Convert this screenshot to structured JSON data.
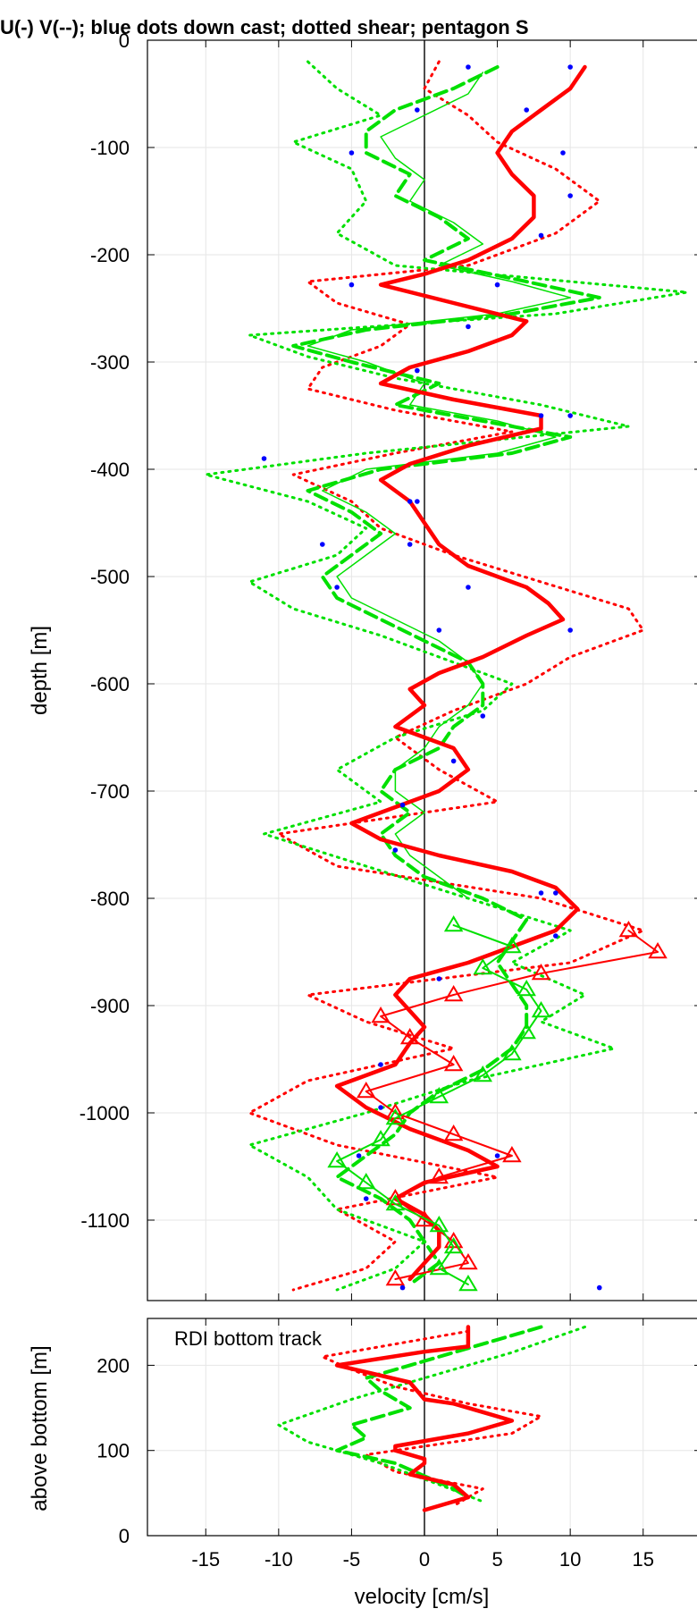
{
  "chart_data": [
    {
      "type": "line",
      "title": "U(-) V(--); blue dots down cast; dotted shear; pentagon S",
      "xlabel": "",
      "ylabel": "depth [m]",
      "xlim": [
        -19,
        19
      ],
      "ylim": [
        -1175,
        0
      ],
      "y_tick_labels": [
        "0",
        "-100",
        "-200",
        "-300",
        "-400",
        "-500",
        "-600",
        "-700",
        "-800",
        "-900",
        "-1000",
        "-1100"
      ],
      "x_ticks": [
        -15,
        -10,
        -5,
        0,
        5,
        10,
        15
      ],
      "grid": true,
      "colors": {
        "u": "#ff0000",
        "v": "#00e000",
        "downcast": "#0000ff",
        "zero": "#000000"
      },
      "series": [
        {
          "key": "u",
          "style": "solid-thick",
          "color": "#ff0000",
          "depth": [
            -25,
            -45,
            -65,
            -85,
            -105,
            -125,
            -145,
            -165,
            -185,
            -205,
            -218,
            -228,
            -245,
            -262,
            -275,
            -290,
            -305,
            -320,
            -335,
            -350,
            -362,
            -378,
            -395,
            -410,
            -430,
            -450,
            -470,
            -490,
            -510,
            -525,
            -540,
            -555,
            -575,
            -590,
            -605,
            -620,
            -640,
            -660,
            -680,
            -700,
            -715,
            -730,
            -745,
            -760,
            -775,
            -790,
            -810,
            -830,
            -845,
            -860,
            -875,
            -890,
            -905,
            -920,
            -935,
            -955,
            -975,
            -995,
            -1015,
            -1035,
            -1050,
            -1065,
            -1080,
            -1095,
            -1110,
            -1125,
            -1140,
            -1155
          ],
          "u": [
            11,
            10,
            8,
            6,
            5,
            6,
            7.5,
            7.5,
            6,
            3,
            0,
            -3,
            2,
            7,
            6,
            3,
            -1,
            -3,
            2,
            8,
            8,
            3,
            -1,
            -3,
            -1,
            0,
            1,
            3,
            7,
            8.5,
            9.5,
            7,
            4,
            1,
            -1,
            0,
            -2,
            2,
            3,
            1,
            -2,
            -5,
            -3,
            1,
            6,
            9,
            10.5,
            9,
            6,
            3,
            -1,
            -2,
            -1,
            0,
            -1,
            -2,
            -6,
            -4,
            -1,
            3,
            5,
            0,
            -2,
            0,
            1,
            1,
            0,
            -1
          ]
        },
        {
          "key": "v",
          "style": "dashed-thick",
          "color": "#00e000",
          "depth": [
            -25,
            -45,
            -65,
            -85,
            -105,
            -125,
            -145,
            -165,
            -185,
            -205,
            -225,
            -240,
            -255,
            -270,
            -285,
            -300,
            -320,
            -340,
            -355,
            -370,
            -385,
            -400,
            -420,
            -440,
            -460,
            -480,
            -500,
            -520,
            -540,
            -560,
            -580,
            -600,
            -620,
            -640,
            -660,
            -680,
            -700,
            -720,
            -740,
            -760,
            -780,
            -800,
            -820,
            -840,
            -860,
            -880,
            -900,
            -920,
            -940,
            -960,
            -980,
            -1000,
            -1020,
            -1040,
            -1060,
            -1080,
            -1100,
            -1120,
            -1140,
            -1160
          ],
          "v": [
            5,
            2,
            -2,
            -4,
            -4,
            -1,
            -2,
            1,
            3,
            0,
            7,
            12,
            6,
            -4,
            -9,
            -5,
            1,
            -2,
            4,
            10,
            6,
            -3,
            -8,
            -5,
            -3,
            -5,
            -7,
            -6,
            -3,
            0,
            3,
            4,
            4,
            2,
            1,
            -2,
            -3,
            -1,
            -3,
            -2,
            0,
            4,
            7,
            6,
            5,
            6,
            7,
            7,
            6,
            4,
            1,
            -1,
            -2,
            -4,
            -6,
            -3,
            -1,
            0,
            1,
            -1
          ]
        },
        {
          "key": "v-thin",
          "style": "solid-thin",
          "color": "#00e000",
          "depth": [
            -30,
            -50,
            -70,
            -90,
            -110,
            -130,
            -150,
            -170,
            -190,
            -210,
            -225,
            -240,
            -255,
            -270,
            -285,
            -300,
            -320,
            -340,
            -355,
            -370,
            -385,
            -400,
            -420,
            -440,
            -460,
            -480,
            -500,
            -520,
            -540,
            -560,
            -580,
            -600,
            -620,
            -640,
            -660,
            -680,
            -700,
            -720,
            -740,
            -760,
            -780,
            -800
          ],
          "v": [
            4,
            3,
            0,
            -3,
            -2,
            0,
            -1,
            2,
            4,
            1,
            6,
            10,
            5,
            -5,
            -8,
            -4,
            0,
            -1,
            5,
            9,
            5,
            -4,
            -7,
            -4,
            -2,
            -4,
            -6,
            -5,
            -2,
            1,
            3,
            4,
            3,
            1,
            0,
            -2,
            -2,
            0,
            -2,
            -1,
            1,
            3
          ]
        },
        {
          "key": "u-shear",
          "style": "dotted",
          "color": "#ff0000",
          "depth": [
            -20,
            -45,
            -70,
            -95,
            -120,
            -150,
            -180,
            -210,
            -225,
            -245,
            -265,
            -285,
            -305,
            -325,
            -345,
            -365,
            -385,
            -405,
            -430,
            -455,
            -480,
            -505,
            -530,
            -550,
            -575,
            -600,
            -625,
            -650,
            -680,
            -710,
            -740,
            -770,
            -800,
            -830,
            -860,
            -890,
            -915,
            -940,
            -970,
            -1000,
            -1030,
            -1060,
            -1090,
            -1120,
            -1145,
            -1165
          ],
          "u": [
            1,
            0,
            3,
            5,
            9,
            12,
            9,
            3,
            -8,
            -6,
            -1,
            -3,
            -7,
            -8,
            -2,
            6,
            -2,
            -9,
            -5,
            -3,
            2,
            8,
            14,
            15,
            10,
            7,
            2,
            -2,
            1,
            5,
            -10,
            -6,
            8,
            15,
            10,
            -8,
            -4,
            2,
            -8,
            -12,
            -6,
            5,
            -6,
            -2,
            -4,
            -9
          ]
        },
        {
          "key": "v-shear",
          "style": "dotted",
          "color": "#00e000",
          "depth": [
            -20,
            -45,
            -70,
            -95,
            -120,
            -150,
            -180,
            -210,
            -235,
            -255,
            -275,
            -295,
            -315,
            -340,
            -360,
            -385,
            -405,
            -430,
            -455,
            -480,
            -505,
            -530,
            -555,
            -580,
            -600,
            -625,
            -650,
            -680,
            -710,
            -740,
            -770,
            -800,
            -830,
            -860,
            -890,
            -915,
            -940,
            -970,
            -1000,
            -1030,
            -1060,
            -1090,
            -1120,
            -1145,
            -1165
          ],
          "v": [
            -8,
            -6,
            -3,
            -9,
            -5,
            -4,
            -6,
            -2,
            18,
            9,
            -12,
            -8,
            -2,
            8,
            14,
            -4,
            -15,
            -8,
            -4,
            -6,
            -12,
            -9,
            -3,
            2,
            6,
            4,
            -2,
            -6,
            -3,
            -11,
            -4,
            3,
            10,
            6,
            11,
            8,
            13,
            3,
            -4,
            -12,
            -8,
            -6,
            0,
            -2,
            -6
          ]
        },
        {
          "key": "u-s",
          "style": "solid-triangle",
          "color": "#ff0000",
          "depth": [
            -830,
            -850,
            -870,
            -890,
            -910,
            -930,
            -955,
            -980,
            -1000,
            -1020,
            -1040,
            -1060,
            -1080,
            -1100,
            -1120,
            -1140,
            -1155
          ],
          "u": [
            14,
            16,
            8,
            2,
            -3,
            -1,
            2,
            -4,
            -2,
            2,
            6,
            1,
            -2,
            0,
            2,
            3,
            -2
          ]
        },
        {
          "key": "v-s",
          "style": "solid-triangle",
          "color": "#00e000",
          "depth": [
            -825,
            -845,
            -865,
            -885,
            -905,
            -925,
            -945,
            -965,
            -985,
            -1005,
            -1025,
            -1045,
            -1065,
            -1085,
            -1105,
            -1125,
            -1145,
            -1160
          ],
          "v": [
            2,
            6,
            4,
            7,
            8,
            7,
            6,
            4,
            1,
            -2,
            -3,
            -6,
            -4,
            -2,
            1,
            2,
            1,
            3
          ]
        },
        {
          "key": "downcast",
          "style": "dots",
          "color": "#0000ff",
          "points": [
            [
              10,
              -25
            ],
            [
              3,
              -25
            ],
            [
              7,
              -65
            ],
            [
              -0.5,
              -65
            ],
            [
              9.5,
              -105
            ],
            [
              -5,
              -105
            ],
            [
              10,
              -145
            ],
            [
              8,
              -182
            ],
            [
              -5,
              -228
            ],
            [
              5,
              -228
            ],
            [
              3,
              -267
            ],
            [
              -0.5,
              -308
            ],
            [
              8,
              -350
            ],
            [
              10,
              -350
            ],
            [
              -11,
              -390
            ],
            [
              -1,
              -430
            ],
            [
              -0.5,
              -430
            ],
            [
              -7,
              -470
            ],
            [
              -1,
              -470
            ],
            [
              3,
              -510
            ],
            [
              -6,
              -510
            ],
            [
              10,
              -550
            ],
            [
              1,
              -550
            ],
            [
              4,
              -630
            ],
            [
              2,
              -672
            ],
            [
              -1.5,
              -713
            ],
            [
              -2,
              -755
            ],
            [
              8,
              -795
            ],
            [
              9,
              -795
            ],
            [
              9,
              -835
            ],
            [
              1,
              -875
            ],
            [
              -3,
              -955
            ],
            [
              -3,
              -995
            ],
            [
              -4.5,
              -1040
            ],
            [
              5,
              -1040
            ],
            [
              -4,
              -1080
            ],
            [
              12,
              -1163
            ],
            [
              -1.5,
              -1163
            ]
          ]
        }
      ]
    },
    {
      "type": "line",
      "title": "",
      "xlabel": "velocity [cm/s]",
      "ylabel": "above bottom [m]",
      "annotation": "RDI bottom track",
      "xlim": [
        -19,
        19
      ],
      "ylim": [
        0,
        255
      ],
      "y_ticks": [
        0,
        100,
        200
      ],
      "x_tick_labels": [
        "-15",
        "-10",
        "-5",
        "0",
        "5",
        "10",
        "15"
      ],
      "grid": true,
      "series": [
        {
          "key": "u",
          "style": "solid-thick",
          "color": "#ff0000",
          "hab": [
            245,
            222,
            216,
            200,
            180,
            160,
            155,
            145,
            135,
            120,
            105,
            100,
            90,
            85,
            72,
            60,
            45,
            30
          ],
          "u": [
            3,
            3,
            0,
            -6,
            -1,
            0,
            2,
            4,
            6,
            3,
            -2,
            -2,
            0,
            0,
            -1,
            2,
            3,
            0
          ]
        },
        {
          "key": "v",
          "style": "dashed-thick",
          "color": "#00e000",
          "hab": [
            245,
            230,
            215,
            200,
            185,
            170,
            150,
            130,
            115,
            100,
            85,
            70,
            55,
            45
          ],
          "v": [
            8,
            5,
            2,
            -1,
            -4,
            -3,
            -1,
            -5,
            -4,
            -6,
            -2,
            0,
            2,
            3
          ]
        },
        {
          "key": "u-shear",
          "style": "dotted",
          "color": "#ff0000",
          "hab": [
            240,
            210,
            195,
            175,
            155,
            140,
            120,
            95,
            75,
            55,
            35
          ],
          "u": [
            3,
            -7,
            -5,
            -2,
            3,
            8,
            6,
            -4,
            -2,
            4,
            2
          ]
        },
        {
          "key": "v-shear",
          "style": "dotted",
          "color": "#00e000",
          "hab": [
            245,
            215,
            190,
            160,
            130,
            110,
            85,
            60,
            40
          ],
          "v": [
            11,
            6,
            1,
            -5,
            -10,
            -8,
            -3,
            1,
            4
          ]
        }
      ]
    }
  ]
}
